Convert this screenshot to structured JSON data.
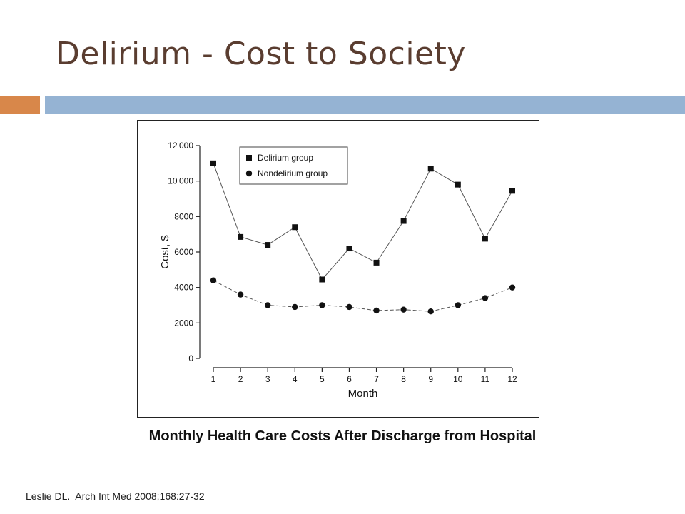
{
  "slide": {
    "title": "Delirium - Cost to Society",
    "caption": "Monthly Health Care Costs After Discharge from Hospital",
    "citation": "Leslie DL.  Arch Int Med 2008;168:27-32",
    "colors": {
      "title": "#5a3d30",
      "accent_bar": "#d8874a",
      "divider_bar": "#95b3d3"
    }
  },
  "chart_data": {
    "type": "line",
    "title": "",
    "xlabel": "Month",
    "ylabel": "Cost, $",
    "x": [
      1,
      2,
      3,
      4,
      5,
      6,
      7,
      8,
      9,
      10,
      11,
      12
    ],
    "x_tick_labels": [
      "1",
      "2",
      "3",
      "4",
      "5",
      "6",
      "7",
      "8",
      "9",
      "10",
      "11",
      "12"
    ],
    "y_tick_labels": [
      "12 000",
      "10 000",
      "8000",
      "6000",
      "4000",
      "2000",
      "0"
    ],
    "y_ticks": [
      12000,
      10000,
      8000,
      6000,
      4000,
      2000,
      0
    ],
    "ylim": [
      0,
      12000
    ],
    "xlim": [
      1,
      12
    ],
    "grid": false,
    "legend_position": "top-left",
    "series": [
      {
        "name": "Delirium group",
        "marker": "square",
        "line_style": "solid",
        "values": [
          11000,
          6850,
          6400,
          7400,
          4450,
          6200,
          5400,
          7750,
          10700,
          9800,
          6750,
          9450
        ]
      },
      {
        "name": "Nondelirium group",
        "marker": "circle",
        "line_style": "dashed",
        "values": [
          4400,
          3600,
          3000,
          2900,
          3000,
          2900,
          2700,
          2750,
          2650,
          3000,
          3400,
          4000
        ]
      }
    ]
  }
}
